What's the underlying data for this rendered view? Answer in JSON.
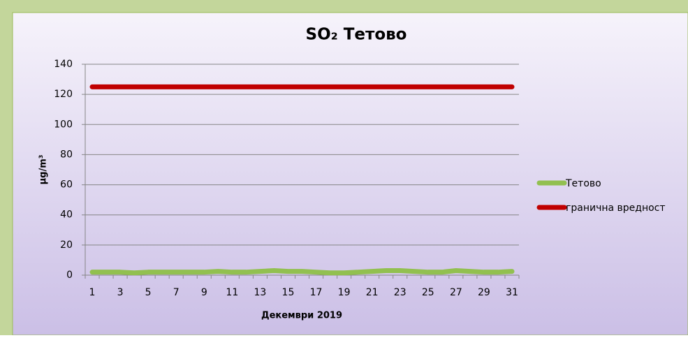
{
  "chart_data": {
    "type": "line",
    "title": "SO₂ Тетово",
    "y_label": "µg/m³",
    "x_label": "Декември 2019",
    "categories": [
      1,
      null,
      3,
      null,
      5,
      null,
      7,
      null,
      9,
      null,
      11,
      null,
      13,
      null,
      15,
      null,
      17,
      null,
      19,
      null,
      21,
      null,
      23,
      null,
      25,
      null,
      27,
      null,
      29,
      null,
      31
    ],
    "series": [
      {
        "name": "Тетово",
        "color": "#92c050",
        "values": [
          2,
          2,
          2,
          1.5,
          2,
          2,
          2,
          2,
          2,
          2.5,
          2,
          2,
          2.5,
          3,
          2.5,
          2.5,
          2,
          1.5,
          1.5,
          2,
          2.5,
          3,
          3,
          2.5,
          2,
          2,
          3,
          2.5,
          2,
          2,
          2.5
        ]
      },
      {
        "name": "гранична вредност",
        "color": "#c00000",
        "values": [
          125,
          125,
          125,
          125,
          125,
          125,
          125,
          125,
          125,
          125,
          125,
          125,
          125,
          125,
          125,
          125,
          125,
          125,
          125,
          125,
          125,
          125,
          125,
          125,
          125,
          125,
          125,
          125,
          125,
          125,
          125
        ]
      }
    ],
    "ylim": [
      0,
      140
    ],
    "yticks": [
      0,
      20,
      40,
      60,
      80,
      100,
      120,
      140
    ],
    "grid": true,
    "legend": "right"
  }
}
